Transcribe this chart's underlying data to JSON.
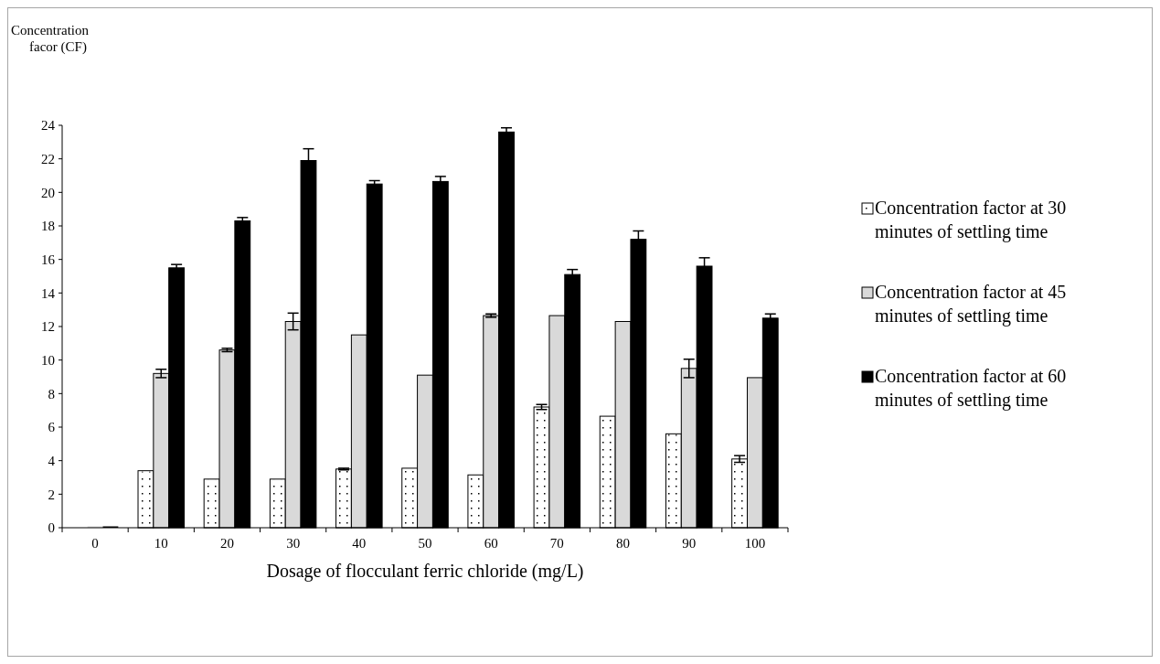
{
  "chart_data": {
    "type": "bar",
    "ylabel": "Concentration facor (CF)",
    "xlabel": "Dosage of flocculant ferric chloride (mg/L)",
    "categories": [
      "0",
      "10",
      "20",
      "30",
      "40",
      "50",
      "60",
      "70",
      "80",
      "90",
      "100"
    ],
    "ylim": [
      0,
      24
    ],
    "yticks": [
      0,
      2,
      4,
      6,
      8,
      10,
      12,
      14,
      16,
      18,
      20,
      22,
      24
    ],
    "grid": false,
    "legend": "right",
    "series": [
      {
        "name": "Concentration factor at 30 minutes of settling time",
        "color": "#ffffff",
        "values": [
          0,
          3.4,
          2.9,
          2.9,
          3.5,
          3.55,
          3.15,
          7.2,
          6.65,
          5.6,
          4.1
        ],
        "errors": [
          null,
          null,
          null,
          null,
          0.05,
          null,
          null,
          0.15,
          null,
          null,
          0.2
        ]
      },
      {
        "name": "Concentration factor at 45 minutes of settling time",
        "color": "#d9d9d9",
        "values": [
          0,
          9.2,
          10.6,
          12.3,
          11.5,
          9.1,
          12.65,
          12.65,
          12.3,
          9.5,
          8.95
        ],
        "errors": [
          null,
          0.25,
          0.1,
          0.5,
          null,
          null,
          0.1,
          null,
          null,
          0.55,
          null
        ]
      },
      {
        "name": "Concentration factor at 60 minutes of settling time",
        "color": "#000000",
        "values": [
          0,
          15.5,
          18.3,
          21.9,
          20.5,
          20.65,
          23.6,
          15.1,
          17.2,
          15.6,
          12.5
        ],
        "errors": [
          null,
          0.2,
          0.2,
          0.7,
          0.2,
          0.3,
          0.25,
          0.3,
          0.5,
          0.5,
          0.25
        ]
      }
    ]
  }
}
